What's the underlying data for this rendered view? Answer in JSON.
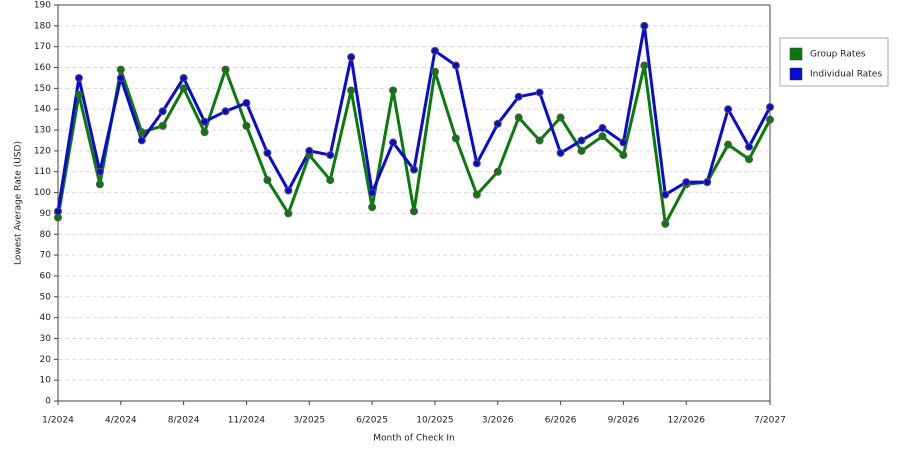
{
  "chart_data": {
    "type": "line",
    "x_label": "Month of Check In",
    "y_label": "Lowest Average Rate (USD)",
    "categories": [
      "1/2024",
      null,
      null,
      "4/2024",
      null,
      null,
      "8/2024",
      null,
      null,
      "11/2024",
      null,
      null,
      "3/2025",
      null,
      null,
      "6/2025",
      null,
      null,
      "10/2025",
      null,
      null,
      "3/2026",
      null,
      null,
      "6/2026",
      null,
      null,
      "9/2026",
      null,
      null,
      "12/2026",
      null,
      null,
      null,
      "7/2027"
    ],
    "series": [
      {
        "name": "Group Rates",
        "color": "#0a7a0a",
        "values": [
          88,
          147,
          104,
          159,
          129,
          132,
          150,
          129,
          159,
          132,
          106,
          90,
          118,
          106,
          149,
          93,
          149,
          91,
          158,
          126,
          99,
          110,
          136,
          125,
          136,
          120,
          127,
          118,
          161,
          85,
          104,
          105,
          123,
          116,
          135
        ]
      },
      {
        "name": "Individual Rates",
        "color": "#0a0ad0",
        "values": [
          91,
          155,
          110,
          155,
          125,
          139,
          155,
          134,
          139,
          143,
          119,
          101,
          120,
          118,
          165,
          100,
          124,
          111,
          168,
          161,
          114,
          133,
          146,
          148,
          119,
          125,
          131,
          124,
          180,
          99,
          105,
          105,
          140,
          122,
          141
        ]
      }
    ],
    "ylim": [
      0,
      190
    ],
    "yticks": [
      0,
      10,
      20,
      30,
      40,
      50,
      60,
      70,
      80,
      90,
      100,
      110,
      120,
      130,
      140,
      150,
      160,
      170,
      180,
      190
    ],
    "grid": true,
    "legend": "right"
  }
}
